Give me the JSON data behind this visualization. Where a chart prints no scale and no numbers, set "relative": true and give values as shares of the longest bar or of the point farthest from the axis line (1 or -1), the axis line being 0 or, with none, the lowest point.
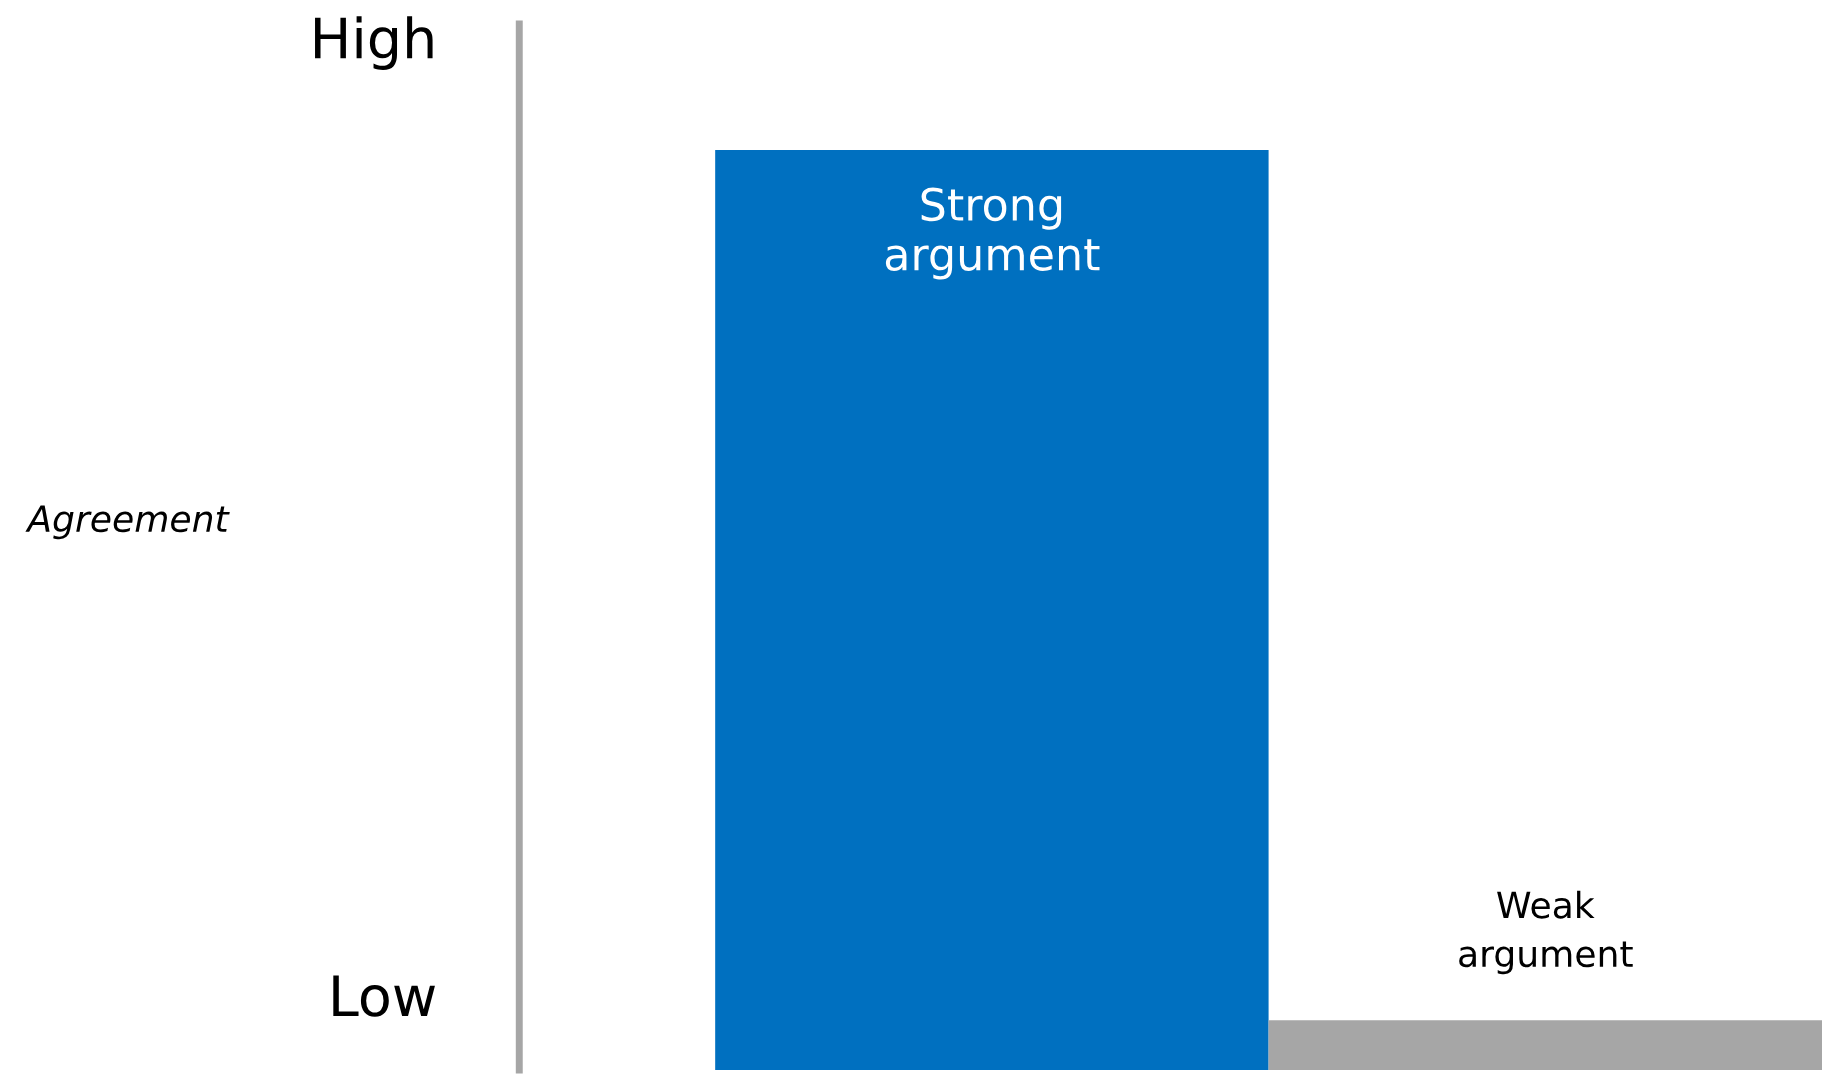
{
  "chart_data": {
    "type": "bar",
    "relative": true,
    "categories": [
      "Strong\nargument",
      "Weak\nargument"
    ],
    "values": [
      1,
      0.054
    ],
    "colors": [
      "#0070c0",
      "#a6a6a6"
    ],
    "annotations": [
      "High",
      "Low",
      "Agreement"
    ]
  }
}
